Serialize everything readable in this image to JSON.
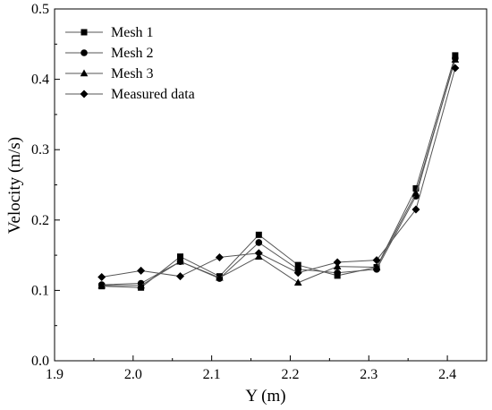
{
  "chart_data": {
    "type": "line",
    "title": "",
    "xlabel": "Y (m)",
    "ylabel": "Velocity (m/s)",
    "xlim": [
      1.9,
      2.45
    ],
    "ylim": [
      0.0,
      0.5
    ],
    "xticks": [
      "1.9",
      "2.0",
      "2.1",
      "2.2",
      "2.3",
      "2.4"
    ],
    "yticks": [
      "0.0",
      "0.1",
      "0.2",
      "0.3",
      "0.4",
      "0.5"
    ],
    "grid": false,
    "legend_position": "top-left",
    "x": [
      1.96,
      2.01,
      2.06,
      2.11,
      2.16,
      2.21,
      2.26,
      2.31,
      2.36,
      2.41
    ],
    "series": [
      {
        "name": "Mesh 1",
        "marker": "square",
        "values": [
          0.106,
          0.104,
          0.148,
          0.12,
          0.179,
          0.136,
          0.121,
          0.133,
          0.245,
          0.434
        ]
      },
      {
        "name": "Mesh 2",
        "marker": "circle",
        "values": [
          0.108,
          0.11,
          0.141,
          0.117,
          0.168,
          0.13,
          0.125,
          0.13,
          0.234,
          0.43
        ]
      },
      {
        "name": "Mesh 3",
        "marker": "triangle",
        "values": [
          0.107,
          0.107,
          0.141,
          0.118,
          0.148,
          0.111,
          0.134,
          0.133,
          0.238,
          0.428
        ]
      },
      {
        "name": "Measured data",
        "marker": "diamond",
        "values": [
          0.119,
          0.128,
          0.12,
          0.147,
          0.153,
          0.125,
          0.14,
          0.143,
          0.215,
          0.416
        ]
      }
    ],
    "colors": {
      "line": "#555555",
      "marker": "#000000",
      "axis": "#000000"
    }
  }
}
